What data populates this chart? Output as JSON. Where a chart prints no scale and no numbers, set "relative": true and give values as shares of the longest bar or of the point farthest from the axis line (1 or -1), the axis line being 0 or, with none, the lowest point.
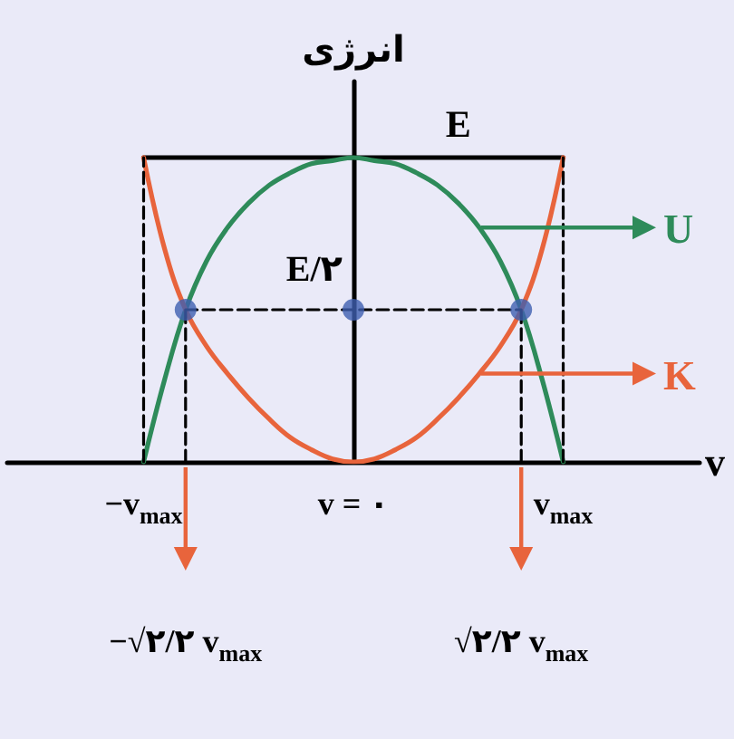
{
  "chart_data": {
    "type": "line",
    "relative": true,
    "ylabel": "انرژی",
    "xlabel": "v",
    "categories": [
      null,
      null,
      null,
      null,
      null,
      null,
      "−v$_{max}$",
      null,
      "−√۲/۲ v$_{max}$",
      null,
      null,
      null,
      null,
      null,
      null,
      null,
      "v = ۰",
      null,
      null,
      null,
      null,
      null,
      null,
      null,
      "√۲/۲ v$_{max}$",
      null,
      "v$_{max}$",
      null,
      null,
      null,
      null,
      null,
      null
    ],
    "marker": "none",
    "legend": "right",
    "series": [
      {
        "name": "E",
        "color": "#000000",
        "values": [
          null,
          null,
          null,
          null,
          null,
          null,
          1,
          1,
          1,
          1,
          1,
          1,
          1,
          1,
          1,
          1,
          1,
          1,
          1,
          1,
          1,
          1,
          1,
          1,
          1,
          1,
          1,
          null,
          null,
          null,
          null,
          null,
          null
        ]
      },
      {
        "name": "U",
        "color": "#2e8b5a",
        "values": [
          null,
          null,
          null,
          null,
          null,
          null,
          0,
          0.27,
          0.5,
          0.66,
          0.77,
          0.85,
          0.91,
          0.95,
          0.98,
          0.99,
          1,
          0.99,
          0.98,
          0.95,
          0.91,
          0.85,
          0.77,
          0.66,
          0.5,
          0.27,
          0,
          null,
          null,
          null,
          null,
          null,
          null
        ]
      },
      {
        "name": "K",
        "color": "#e8643c",
        "values": [
          null,
          null,
          null,
          null,
          null,
          null,
          1,
          0.7,
          0.5,
          0.38,
          0.29,
          0.21,
          0.14,
          0.08,
          0.04,
          0.01,
          0,
          0.01,
          0.04,
          0.08,
          0.14,
          0.21,
          0.29,
          0.38,
          0.5,
          0.7,
          1,
          null,
          null,
          null,
          null,
          null,
          null
        ]
      },
      {
        "color": "#000000",
        "line_style": "dashed",
        "x": [
          "−v$_{max}$",
          "−v$_{max}$"
        ],
        "values": [
          0,
          1
        ]
      },
      {
        "color": "#000000",
        "line_style": "dashed",
        "x": [
          "v$_{max}$",
          "v$_{max}$"
        ],
        "values": [
          0,
          1
        ]
      },
      {
        "color": "#000000",
        "line_style": "dashed",
        "x": [
          "−√۲/۲ v$_{max}$",
          "−√۲/۲ v$_{max}$"
        ],
        "values": [
          0,
          0.5
        ]
      },
      {
        "color": "#000000",
        "line_style": "dashed",
        "x": [
          "√۲/۲ v$_{max}$",
          "√۲/۲ v$_{max}$"
        ],
        "values": [
          0,
          0.5
        ]
      },
      {
        "color": "#000000",
        "line_style": "dashed",
        "values": [
          null,
          null,
          null,
          null,
          null,
          null,
          null,
          null,
          0.5,
          0.5,
          0.5,
          0.5,
          0.5,
          0.5,
          0.5,
          0.5,
          0.5,
          0.5,
          0.5,
          0.5,
          0.5,
          0.5,
          0.5,
          0.5,
          0.5,
          null,
          null,
          null,
          null,
          null,
          null,
          null,
          null
        ]
      },
      {
        "type": "scatter",
        "marker": "circle",
        "color": "#3f5fb0",
        "x": [
          "−√۲/۲ v$_{max}$",
          "v = ۰",
          "√۲/۲ v$_{max}$"
        ],
        "values": [
          0.5,
          0.5,
          0.5
        ]
      }
    ],
    "annotations": [
      {
        "text": "E/۲",
        "x": "v = ۰",
        "y": 0.5
      }
    ]
  }
}
